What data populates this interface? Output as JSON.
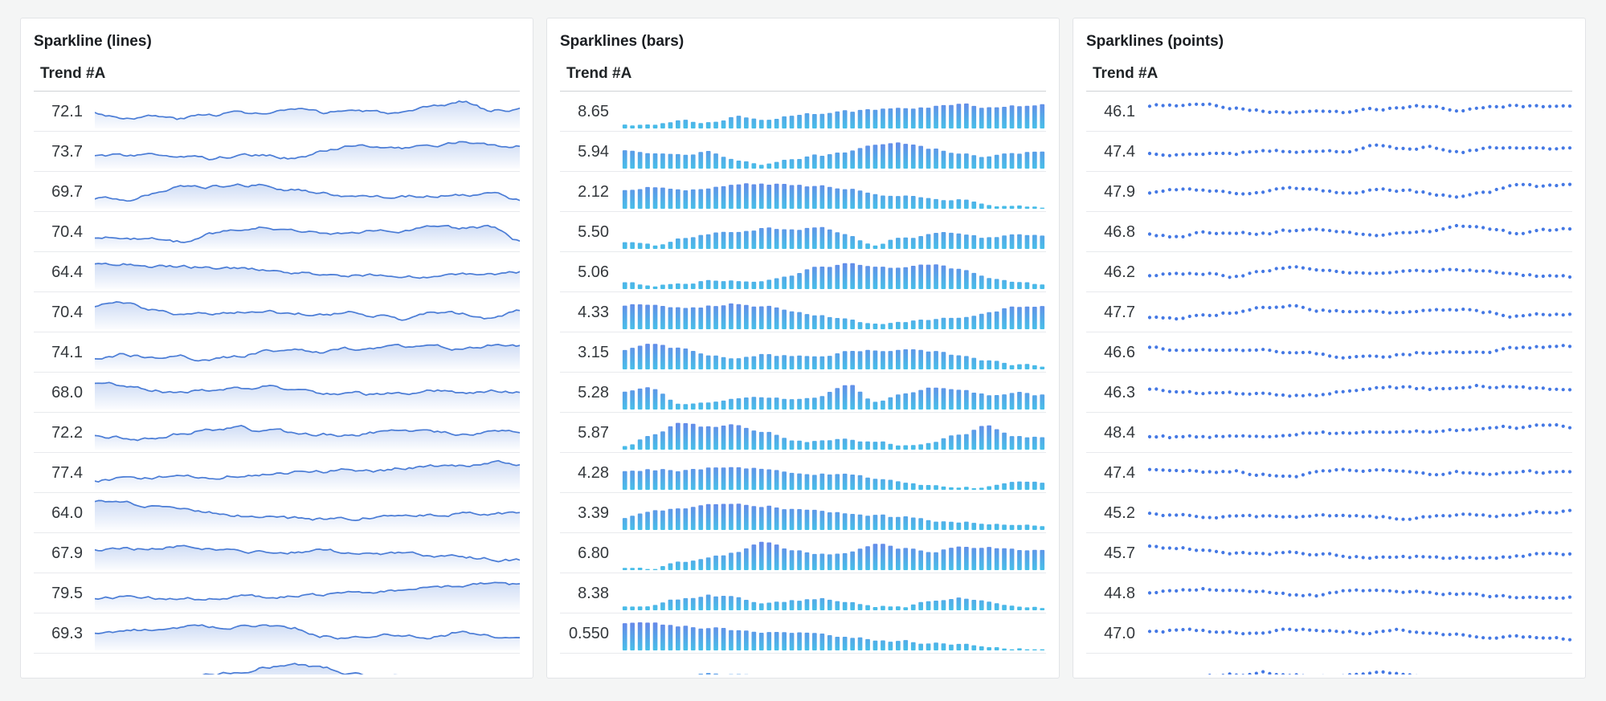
{
  "page": {
    "background": "#f4f5f5"
  },
  "colors": {
    "line_stroke": "#4a7cd6",
    "line_fill": "#5d8add",
    "bar_top": "#6e7ce9",
    "bar_bottom": "#47bfe8",
    "point": "#4478e4"
  },
  "chart_data": {
    "note": "three panels of sparklines; per-row latest values and coarse silhouettes (0-100) captured below"
  },
  "panels": [
    {
      "title": "Sparkline (lines)",
      "column_header": "Trend #A",
      "type": "line",
      "rows": [
        {
          "value": "72.1",
          "shape": [
            45,
            30,
            34,
            25,
            40,
            48,
            42,
            55,
            45,
            55,
            48,
            42,
            65,
            85,
            55,
            60
          ]
        },
        {
          "value": "73.7",
          "shape": [
            34,
            38,
            46,
            32,
            26,
            34,
            36,
            30,
            50,
            66,
            68,
            64,
            74,
            88,
            70,
            72
          ]
        },
        {
          "value": "69.7",
          "shape": [
            28,
            22,
            45,
            68,
            70,
            74,
            72,
            58,
            44,
            34,
            30,
            36,
            34,
            42,
            46,
            22
          ]
        },
        {
          "value": "70.4",
          "shape": [
            30,
            33,
            24,
            16,
            44,
            58,
            68,
            58,
            46,
            44,
            56,
            58,
            70,
            62,
            66,
            18
          ]
        },
        {
          "value": "64.4",
          "shape": [
            78,
            80,
            74,
            70,
            66,
            62,
            56,
            50,
            46,
            42,
            38,
            35,
            38,
            44,
            46,
            48
          ]
        },
        {
          "value": "70.4",
          "shape": [
            72,
            85,
            58,
            46,
            42,
            50,
            56,
            46,
            40,
            48,
            38,
            25,
            48,
            46,
            32,
            56
          ]
        },
        {
          "value": "74.1",
          "shape": [
            32,
            44,
            34,
            36,
            20,
            34,
            54,
            62,
            52,
            60,
            64,
            70,
            66,
            60,
            76,
            72
          ]
        },
        {
          "value": "68.0",
          "shape": [
            86,
            78,
            62,
            50,
            56,
            64,
            70,
            50,
            44,
            50,
            42,
            50,
            56,
            50,
            58,
            54
          ]
        },
        {
          "value": "72.2",
          "shape": [
            40,
            34,
            30,
            45,
            64,
            70,
            56,
            50,
            46,
            42,
            50,
            56,
            48,
            46,
            50,
            52
          ]
        },
        {
          "value": "77.4",
          "shape": [
            22,
            30,
            34,
            38,
            36,
            44,
            48,
            52,
            56,
            62,
            58,
            68,
            74,
            78,
            84,
            82
          ]
        },
        {
          "value": "64.0",
          "shape": [
            88,
            82,
            72,
            62,
            52,
            42,
            34,
            30,
            28,
            32,
            36,
            40,
            44,
            48,
            50,
            48
          ]
        },
        {
          "value": "67.9",
          "shape": [
            64,
            70,
            64,
            74,
            70,
            58,
            52,
            56,
            60,
            50,
            44,
            46,
            38,
            34,
            32,
            26
          ]
        },
        {
          "value": "79.5",
          "shape": [
            30,
            34,
            34,
            38,
            32,
            40,
            38,
            40,
            44,
            48,
            54,
            62,
            70,
            78,
            84,
            78
          ]
        },
        {
          "value": "69.3",
          "shape": [
            54,
            60,
            66,
            74,
            76,
            72,
            74,
            66,
            40,
            34,
            44,
            42,
            40,
            56,
            42,
            34
          ]
        },
        {
          "value": "",
          "shape": [
            35,
            38,
            42,
            40,
            45,
            55,
            72,
            78,
            70,
            48,
            40,
            36,
            38,
            34,
            36,
            32
          ]
        }
      ]
    },
    {
      "title": "Sparklines (bars)",
      "column_header": "Trend #A",
      "type": "bars",
      "rows": [
        {
          "value": "8.65",
          "shape": [
            14,
            8,
            20,
            16,
            35,
            30,
            40,
            45,
            52,
            58,
            64,
            72,
            78,
            70,
            74,
            76
          ]
        },
        {
          "value": "5.94",
          "shape": [
            55,
            46,
            40,
            52,
            28,
            8,
            30,
            40,
            55,
            72,
            80,
            62,
            50,
            34,
            52,
            62
          ]
        },
        {
          "value": "2.12",
          "shape": [
            62,
            68,
            60,
            70,
            80,
            82,
            76,
            72,
            62,
            50,
            40,
            34,
            28,
            16,
            10,
            8
          ]
        },
        {
          "value": "5.50",
          "shape": [
            25,
            10,
            35,
            50,
            55,
            66,
            55,
            70,
            40,
            12,
            35,
            45,
            52,
            38,
            48,
            44
          ]
        },
        {
          "value": "5.06",
          "shape": [
            25,
            14,
            20,
            28,
            24,
            30,
            48,
            70,
            80,
            76,
            72,
            74,
            60,
            34,
            18,
            14
          ]
        },
        {
          "value": "4.33",
          "shape": [
            78,
            80,
            74,
            78,
            84,
            72,
            58,
            44,
            30,
            12,
            22,
            30,
            40,
            55,
            75,
            70
          ]
        },
        {
          "value": "3.15",
          "shape": [
            62,
            80,
            66,
            44,
            32,
            48,
            42,
            36,
            52,
            58,
            64,
            56,
            40,
            28,
            12,
            10
          ]
        },
        {
          "value": "5.28",
          "shape": [
            55,
            65,
            15,
            30,
            35,
            42,
            35,
            45,
            82,
            30,
            50,
            75,
            62,
            45,
            58,
            48
          ]
        },
        {
          "value": "5.87",
          "shape": [
            15,
            50,
            85,
            70,
            80,
            55,
            32,
            28,
            35,
            25,
            15,
            20,
            45,
            75,
            48,
            40
          ]
        },
        {
          "value": "4.28",
          "shape": [
            62,
            66,
            64,
            70,
            75,
            72,
            62,
            55,
            48,
            38,
            28,
            18,
            14,
            10,
            18,
            20
          ]
        },
        {
          "value": "3.39",
          "shape": [
            40,
            58,
            72,
            85,
            82,
            76,
            70,
            62,
            54,
            46,
            38,
            30,
            24,
            18,
            12,
            10
          ]
        },
        {
          "value": "6.80",
          "shape": [
            8,
            6,
            30,
            42,
            55,
            88,
            60,
            48,
            58,
            85,
            70,
            62,
            82,
            75,
            65,
            60
          ]
        },
        {
          "value": "8.38",
          "shape": [
            12,
            18,
            35,
            48,
            42,
            25,
            32,
            36,
            22,
            10,
            12,
            30,
            40,
            32,
            15,
            12
          ]
        },
        {
          "value": "0.550",
          "shape": [
            88,
            84,
            78,
            72,
            65,
            58,
            52,
            46,
            40,
            34,
            28,
            22,
            16,
            10,
            6,
            4
          ]
        },
        {
          "value": "",
          "shape": [
            50,
            28,
            45,
            62,
            58,
            48,
            30,
            18,
            10,
            6,
            5,
            4,
            6,
            8,
            5,
            4
          ]
        }
      ]
    },
    {
      "title": "Sparklines (points)",
      "column_header": "Trend #A",
      "type": "points",
      "rows": [
        {
          "value": "46.1",
          "shape": [
            72,
            78,
            80,
            70,
            55,
            50,
            52,
            48,
            55,
            62,
            68,
            60,
            66,
            72,
            70,
            72
          ]
        },
        {
          "value": "47.4",
          "shape": [
            45,
            38,
            45,
            40,
            55,
            50,
            48,
            52,
            75,
            60,
            68,
            50,
            60,
            72,
            68,
            64
          ]
        },
        {
          "value": "47.9",
          "shape": [
            50,
            60,
            48,
            42,
            55,
            66,
            55,
            48,
            58,
            52,
            42,
            32,
            55,
            72,
            70,
            74
          ]
        },
        {
          "value": "46.8",
          "shape": [
            40,
            30,
            50,
            45,
            42,
            55,
            70,
            58,
            45,
            42,
            52,
            72,
            60,
            44,
            56,
            62
          ]
        },
        {
          "value": "46.2",
          "shape": [
            40,
            50,
            42,
            32,
            58,
            70,
            58,
            48,
            40,
            52,
            48,
            58,
            50,
            44,
            36,
            30
          ]
        },
        {
          "value": "47.7",
          "shape": [
            26,
            24,
            38,
            52,
            70,
            74,
            60,
            56,
            60,
            52,
            58,
            62,
            48,
            34,
            38,
            42
          ]
        },
        {
          "value": "46.6",
          "shape": [
            70,
            64,
            60,
            66,
            56,
            48,
            46,
            34,
            30,
            40,
            52,
            56,
            50,
            62,
            72,
            74
          ]
        },
        {
          "value": "46.3",
          "shape": [
            60,
            56,
            50,
            44,
            40,
            36,
            42,
            60,
            68,
            70,
            64,
            70,
            76,
            72,
            66,
            62
          ]
        },
        {
          "value": "48.4",
          "shape": [
            36,
            32,
            36,
            42,
            38,
            46,
            50,
            48,
            54,
            58,
            56,
            62,
            66,
            70,
            76,
            72
          ]
        },
        {
          "value": "47.4",
          "shape": [
            60,
            48,
            52,
            58,
            44,
            36,
            52,
            62,
            58,
            48,
            44,
            52,
            48,
            56,
            52,
            56
          ]
        },
        {
          "value": "45.2",
          "shape": [
            48,
            42,
            36,
            44,
            40,
            36,
            46,
            42,
            34,
            30,
            36,
            40,
            38,
            46,
            52,
            56
          ]
        },
        {
          "value": "45.7",
          "shape": [
            74,
            70,
            62,
            56,
            50,
            54,
            44,
            36,
            30,
            34,
            38,
            34,
            30,
            38,
            46,
            44
          ]
        },
        {
          "value": "44.8",
          "shape": [
            54,
            58,
            66,
            56,
            50,
            44,
            42,
            56,
            64,
            58,
            54,
            48,
            42,
            38,
            34,
            38
          ]
        },
        {
          "value": "47.0",
          "shape": [
            56,
            62,
            56,
            50,
            58,
            64,
            66,
            60,
            56,
            64,
            52,
            46,
            42,
            38,
            34,
            32
          ]
        },
        {
          "value": "",
          "shape": [
            30,
            34,
            38,
            44,
            55,
            42,
            36,
            46,
            58,
            54,
            40,
            30,
            26,
            22,
            20,
            18
          ]
        }
      ]
    }
  ]
}
